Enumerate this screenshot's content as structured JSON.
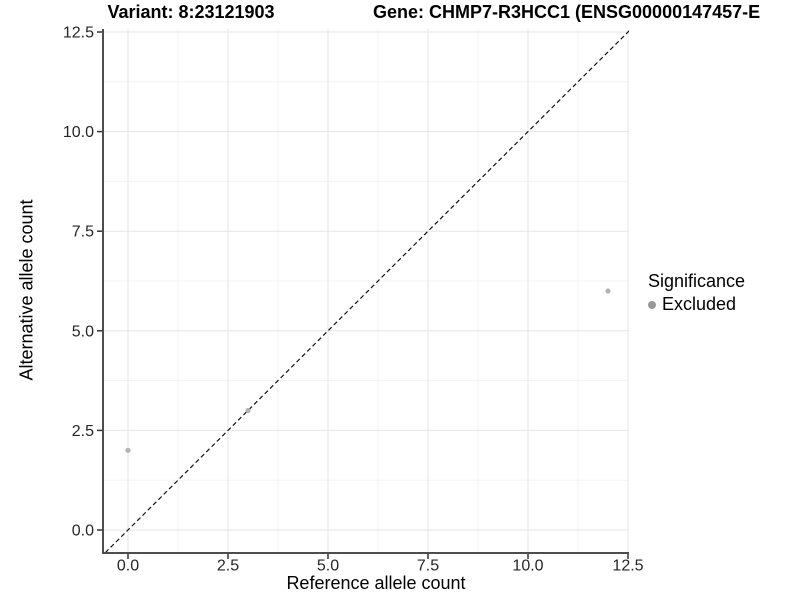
{
  "titles": {
    "variant": "Variant: 8:23121903",
    "gene": "Gene: CHMP7-R3HCC1 (ENSG00000147457-E"
  },
  "chart_data": {
    "type": "scatter",
    "title": "Variant: 8:23121903",
    "title2": "Gene: CHMP7-R3HCC1 (ENSG00000147457-E",
    "xlabel": "Reference allele count",
    "ylabel": "Alternative allele count",
    "xlim": [
      -0.6,
      12.55
    ],
    "ylim": [
      -0.55,
      12.6
    ],
    "x_major_ticks": [
      0,
      2.5,
      5,
      7.5,
      10,
      12.5
    ],
    "y_major_ticks": [
      0,
      2.5,
      5,
      7.5,
      10,
      12.5
    ],
    "x_tick_labels": [
      "0.0",
      "2.5",
      "5.0",
      "7.5",
      "10.0",
      "12.5"
    ],
    "y_tick_labels": [
      "0.0",
      "2.5",
      "5.0",
      "7.5",
      "10.0",
      "12.5"
    ],
    "x_minor_ticks": [
      1.25,
      3.75,
      6.25,
      8.75,
      11.25
    ],
    "y_minor_ticks": [
      1.25,
      3.75,
      6.25,
      8.75,
      11.25
    ],
    "grid": "major+minor",
    "series": [
      {
        "name": "Excluded",
        "color": "#b3b3b3",
        "points": [
          {
            "x": 0,
            "y": 2
          },
          {
            "x": 3,
            "y": 3
          },
          {
            "x": 12,
            "y": 6
          }
        ]
      }
    ],
    "reference_line": {
      "type": "identity",
      "style": "dashed",
      "color": "#111111"
    },
    "legend": {
      "title": "Significance",
      "position": "right",
      "items": [
        {
          "label": "Excluded",
          "color": "#999999",
          "marker": "circle"
        }
      ]
    }
  },
  "colors": {
    "background": "#ffffff",
    "axis_line": "#4d4d4d",
    "tick_mark": "#333333",
    "tick_label": "#262626",
    "grid_major": "#e6e6e6",
    "grid_minor": "#f3f3f3",
    "point": "#b3b3b3",
    "legend_key": "#999999",
    "reference_line": "#111111"
  }
}
